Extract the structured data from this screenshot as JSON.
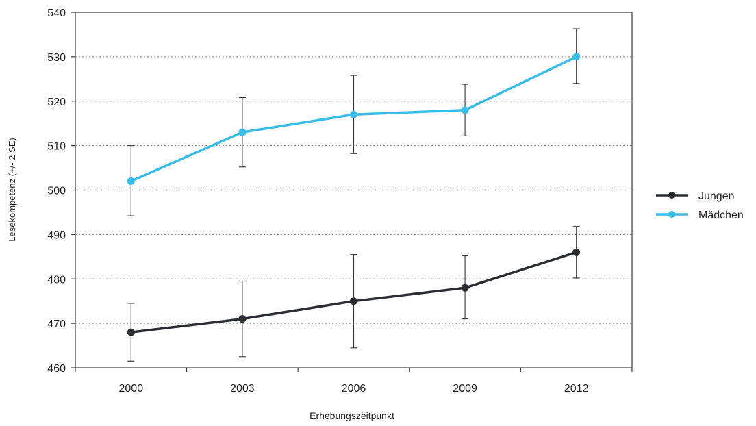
{
  "chart_data": {
    "type": "line",
    "title": "",
    "xlabel": "Erhebungszeitpunkt",
    "ylabel": "Lesekompetenz (+/- 2 SE)",
    "categories": [
      "2000",
      "2003",
      "2006",
      "2009",
      "2012"
    ],
    "ylim": [
      460,
      540
    ],
    "yticks": [
      460,
      470,
      480,
      490,
      500,
      510,
      520,
      530,
      540
    ],
    "grid": "horizontal dotted",
    "legend_position": "right",
    "series": [
      {
        "name": "Jungen",
        "color": "#2b2d33",
        "values": [
          468,
          471,
          475,
          478,
          486
        ],
        "error_low": [
          461.5,
          462.5,
          464.5,
          471,
          480.2
        ],
        "error_high": [
          474.5,
          479.5,
          485.5,
          485.2,
          491.8
        ]
      },
      {
        "name": "Mädchen",
        "color": "#35bce8",
        "values": [
          502,
          513,
          517,
          518,
          530
        ],
        "error_low": [
          494.2,
          505.2,
          508.2,
          512.2,
          524
        ],
        "error_high": [
          510,
          520.8,
          525.8,
          523.8,
          536.3
        ]
      }
    ]
  }
}
